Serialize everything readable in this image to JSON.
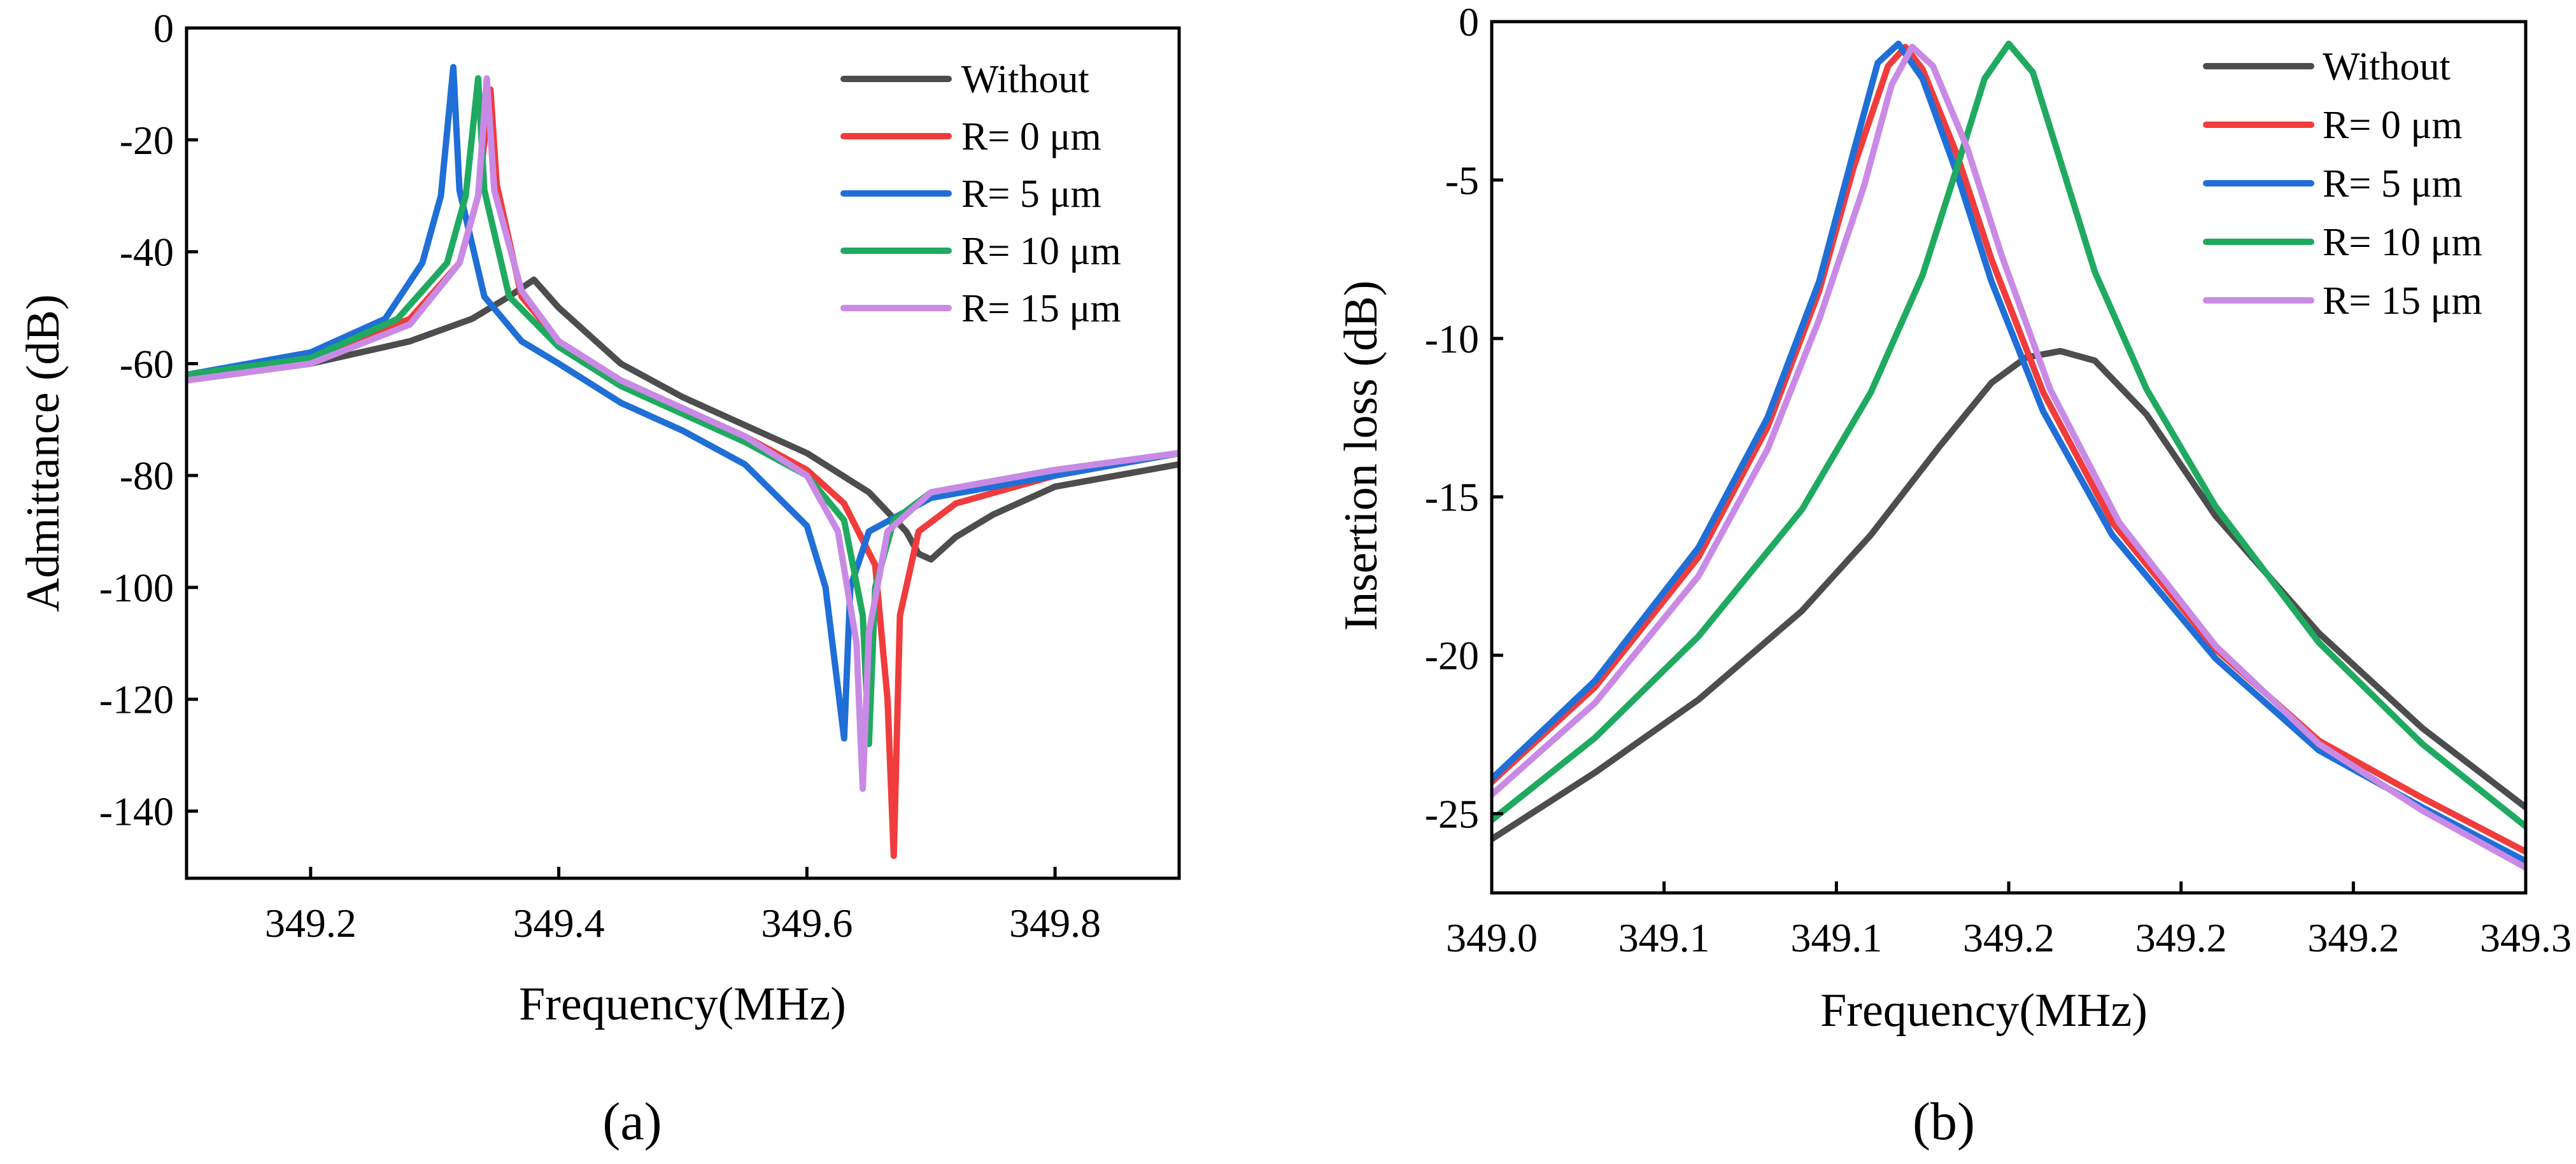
{
  "colors": {
    "Without": "#4d4d4d",
    "R0": "#f03c3c",
    "R5": "#1f6fd6",
    "R10": "#1faa60",
    "R15": "#c98ae6"
  },
  "chart_data": [
    {
      "id": "a",
      "type": "line",
      "caption": "(a)",
      "xlabel": "Frequency(MHz)",
      "ylabel": "Admittance (dB)",
      "xlim": [
        349.1,
        349.9
      ],
      "ylim": [
        -152,
        0
      ],
      "xticks": [
        349.2,
        349.4,
        349.6,
        349.8
      ],
      "xtick_labels": [
        "349.2",
        "349.4",
        "349.6",
        "349.8"
      ],
      "yticks": [
        0,
        -20,
        -40,
        -60,
        -80,
        -100,
        -120,
        -140
      ],
      "ytick_labels": [
        "0",
        "-20",
        "-40",
        "-60",
        "-80",
        "-100",
        "-120",
        "-140"
      ],
      "legend_position": "top-right",
      "series": [
        {
          "key": "Without",
          "name": "Without",
          "x": [
            349.1,
            349.2,
            349.28,
            349.33,
            349.36,
            349.38,
            349.4,
            349.45,
            349.5,
            349.55,
            349.6,
            349.65,
            349.68,
            349.69,
            349.7,
            349.72,
            349.75,
            349.8,
            349.9
          ],
          "y": [
            -63,
            -60,
            -56,
            -52,
            -48,
            -45,
            -50,
            -60,
            -66,
            -71,
            -76,
            -83,
            -90,
            -94,
            -95,
            -91,
            -87,
            -82,
            -78
          ]
        },
        {
          "key": "R0",
          "name": "R= 0 μm",
          "x": [
            349.1,
            349.2,
            349.28,
            349.32,
            349.335,
            349.345,
            349.35,
            349.37,
            349.4,
            349.45,
            349.5,
            349.55,
            349.6,
            349.63,
            349.655,
            349.665,
            349.67,
            349.675,
            349.69,
            349.72,
            349.8,
            349.9
          ],
          "y": [
            -62,
            -59,
            -52,
            -42,
            -30,
            -11,
            -28,
            -48,
            -56,
            -63,
            -68,
            -73,
            -79,
            -85,
            -96,
            -120,
            -148,
            -105,
            -90,
            -85,
            -80,
            -76
          ]
        },
        {
          "key": "R5",
          "name": "R= 5 μm",
          "x": [
            349.1,
            349.2,
            349.26,
            349.29,
            349.305,
            349.315,
            349.32,
            349.34,
            349.37,
            349.4,
            349.45,
            349.5,
            349.55,
            349.6,
            349.615,
            349.625,
            349.63,
            349.635,
            349.65,
            349.7,
            349.8,
            349.9
          ],
          "y": [
            -62,
            -58,
            -52,
            -42,
            -30,
            -7,
            -29,
            -48,
            -56,
            -60,
            -67,
            -72,
            -78,
            -89,
            -100,
            -118,
            -127,
            -100,
            -90,
            -84,
            -80,
            -76
          ]
        },
        {
          "key": "R10",
          "name": "R= 10 μm",
          "x": [
            349.1,
            349.2,
            349.27,
            349.31,
            349.325,
            349.335,
            349.34,
            349.36,
            349.4,
            349.45,
            349.5,
            349.55,
            349.6,
            349.63,
            349.645,
            349.65,
            349.655,
            349.67,
            349.7,
            349.8,
            349.9
          ],
          "y": [
            -62,
            -59,
            -52,
            -42,
            -30,
            -9,
            -29,
            -48,
            -57,
            -64,
            -69,
            -74,
            -80,
            -88,
            -105,
            -128,
            -100,
            -88,
            -83,
            -79,
            -76
          ]
        },
        {
          "key": "R15",
          "name": "R= 15 μm",
          "x": [
            349.1,
            349.2,
            349.28,
            349.32,
            349.335,
            349.342,
            349.348,
            349.37,
            349.4,
            349.45,
            349.5,
            349.55,
            349.6,
            349.625,
            349.64,
            349.645,
            349.65,
            349.665,
            349.7,
            349.8,
            349.9
          ],
          "y": [
            -63,
            -60,
            -53,
            -42,
            -30,
            -9,
            -29,
            -47,
            -56,
            -63,
            -68,
            -73,
            -80,
            -90,
            -110,
            -136,
            -108,
            -90,
            -83,
            -79,
            -76
          ]
        }
      ]
    },
    {
      "id": "b",
      "type": "line",
      "caption": "(b)",
      "xlabel": "Frequency(MHz)",
      "ylabel": "Insertion loss (dB)",
      "xlim": [
        349.0,
        349.3
      ],
      "ylim": [
        -27.5,
        0
      ],
      "xticks": [
        349.0,
        349.05,
        349.1,
        349.15,
        349.2,
        349.25,
        349.3
      ],
      "xtick_labels": [
        "349.0",
        "349.1",
        "349.1",
        "349.2",
        "349.2",
        "349.2",
        "349.3"
      ],
      "yticks": [
        0,
        -5,
        -10,
        -15,
        -20,
        -25
      ],
      "ytick_labels": [
        "0",
        "-5",
        "-10",
        "-15",
        "-20",
        "-25"
      ],
      "legend_position": "top-right",
      "series": [
        {
          "key": "Without",
          "name": "Without",
          "x": [
            349.0,
            349.03,
            349.06,
            349.09,
            349.11,
            349.13,
            349.145,
            349.155,
            349.165,
            349.175,
            349.19,
            349.21,
            349.24,
            349.27,
            349.3
          ],
          "y": [
            -25.8,
            -23.7,
            -21.4,
            -18.6,
            -16.2,
            -13.4,
            -11.4,
            -10.6,
            -10.4,
            -10.7,
            -12.4,
            -15.6,
            -19.3,
            -22.3,
            -24.8
          ]
        },
        {
          "key": "R0",
          "name": "R= 0 μm",
          "x": [
            349.0,
            349.03,
            349.06,
            349.08,
            349.095,
            349.105,
            349.115,
            349.12,
            349.125,
            349.135,
            349.145,
            349.16,
            349.18,
            349.21,
            349.24,
            349.27,
            349.3
          ],
          "y": [
            -24.0,
            -21.0,
            -16.9,
            -12.8,
            -8.5,
            -4.6,
            -1.4,
            -0.8,
            -1.5,
            -4.2,
            -7.5,
            -11.7,
            -15.8,
            -19.8,
            -22.7,
            -24.5,
            -26.2
          ]
        },
        {
          "key": "R5",
          "name": "R= 5 μm",
          "x": [
            349.0,
            349.03,
            349.06,
            349.08,
            349.095,
            349.105,
            349.112,
            349.118,
            349.125,
            349.135,
            349.145,
            349.16,
            349.18,
            349.21,
            349.24,
            349.27,
            349.3
          ],
          "y": [
            -23.9,
            -20.8,
            -16.6,
            -12.5,
            -8.2,
            -4.1,
            -1.3,
            -0.7,
            -1.8,
            -4.8,
            -8.2,
            -12.3,
            -16.2,
            -20.1,
            -23.0,
            -24.8,
            -26.5
          ]
        },
        {
          "key": "R10",
          "name": "R= 10 μm",
          "x": [
            349.0,
            349.03,
            349.06,
            349.09,
            349.11,
            349.125,
            349.135,
            349.143,
            349.15,
            349.157,
            349.165,
            349.175,
            349.19,
            349.21,
            349.24,
            349.27,
            349.3
          ],
          "y": [
            -25.2,
            -22.6,
            -19.4,
            -15.4,
            -11.7,
            -8.0,
            -4.6,
            -1.8,
            -0.7,
            -1.6,
            -4.4,
            -7.9,
            -11.6,
            -15.3,
            -19.6,
            -22.8,
            -25.4
          ]
        },
        {
          "key": "R15",
          "name": "R= 15 μm",
          "x": [
            349.0,
            349.03,
            349.06,
            349.08,
            349.095,
            349.108,
            349.116,
            349.122,
            349.128,
            349.138,
            349.148,
            349.162,
            349.182,
            349.21,
            349.24,
            349.27,
            349.3
          ],
          "y": [
            -24.4,
            -21.5,
            -17.5,
            -13.5,
            -9.4,
            -5.2,
            -2.0,
            -0.8,
            -1.4,
            -4.0,
            -7.4,
            -11.6,
            -15.8,
            -19.7,
            -22.8,
            -24.9,
            -26.7
          ]
        }
      ]
    }
  ]
}
